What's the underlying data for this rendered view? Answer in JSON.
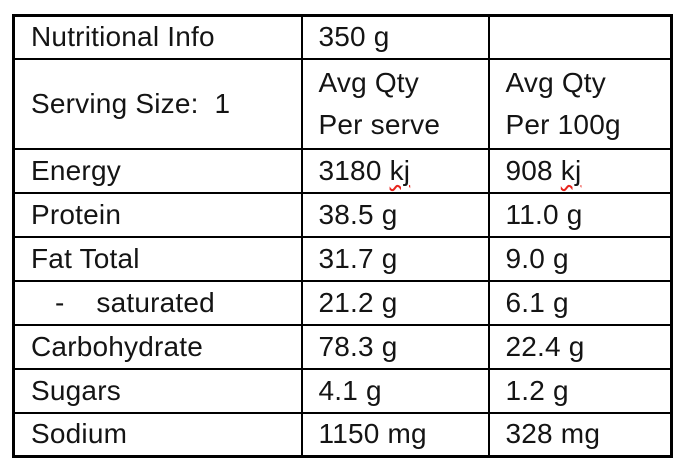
{
  "page": {
    "background_color": "#ffffff",
    "text_color": "#141414",
    "border_color": "#000000",
    "spellcheck_underline_color": "#e8251d"
  },
  "table": {
    "title": "Nutritional Info",
    "rows": [
      {
        "cells": [
          {
            "text": "Nutritional Info"
          },
          {
            "text": "350 g"
          },
          {
            "text": ""
          }
        ]
      },
      {
        "tall": true,
        "cells": [
          {
            "text": "Serving Size:  1",
            "top": true
          },
          {
            "lines": [
              "Avg Qty",
              "Per serve"
            ],
            "top": true
          },
          {
            "lines": [
              "Avg Qty",
              "Per 100g"
            ],
            "top": true
          }
        ]
      },
      {
        "cells": [
          {
            "text": "Energy"
          },
          {
            "text": "3180 ",
            "misspelled": "kj"
          },
          {
            "text": "908 ",
            "misspelled": "kj"
          }
        ]
      },
      {
        "cells": [
          {
            "text": "Protein"
          },
          {
            "text": "38.5 g"
          },
          {
            "text": "11.0 g"
          }
        ]
      },
      {
        "cells": [
          {
            "text": "Fat Total"
          },
          {
            "text": "31.7 g"
          },
          {
            "text": "9.0 g"
          }
        ]
      },
      {
        "cells": [
          {
            "text": "   -    saturated"
          },
          {
            "text": "21.2 g"
          },
          {
            "text": "6.1 g"
          }
        ]
      },
      {
        "cells": [
          {
            "text": "Carbohydrate"
          },
          {
            "text": "78.3 g"
          },
          {
            "text": "22.4 g"
          }
        ]
      },
      {
        "cells": [
          {
            "text": "Sugars"
          },
          {
            "text": "4.1 g"
          },
          {
            "text": "1.2 g"
          }
        ]
      },
      {
        "cells": [
          {
            "text": "Sodium"
          },
          {
            "text": "1150 mg"
          },
          {
            "text": "328 mg"
          }
        ]
      }
    ]
  }
}
